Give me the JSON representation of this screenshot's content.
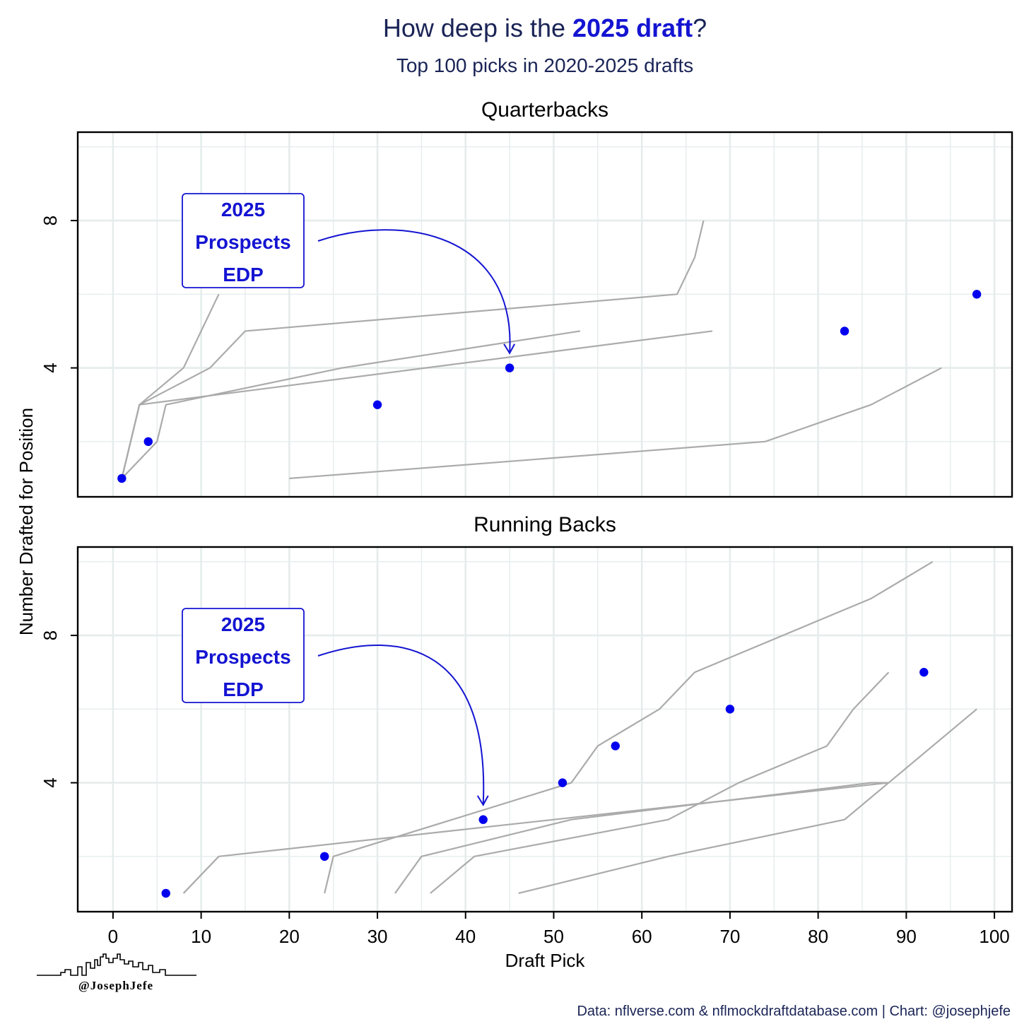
{
  "header": {
    "title_prefix": "How deep is the ",
    "title_highlight": "2025 draft",
    "title_suffix": "?",
    "subtitle": "Top 100 picks in 2020-2025 drafts"
  },
  "axes": {
    "xlabel": "Draft Pick",
    "ylabel": "Number Drafted for Position"
  },
  "annotation": {
    "lines": [
      "2025",
      "Prospects",
      "EDP"
    ]
  },
  "footer": {
    "caption": "Data: nflverse.com & nflmockdraftdatabase.com | Chart: @josephjefe",
    "logo_text": "@JosephJefe"
  },
  "colors": {
    "navy": "#1a2456",
    "highlight": "#1414d2",
    "point": "#0000ee",
    "history_line": "#ababab",
    "grid": "#e6ecec"
  },
  "chart_data": [
    {
      "type": "line",
      "panel_title": "Quarterbacks",
      "xlim": [
        -4,
        102
      ],
      "ylim": [
        0.5,
        10.4
      ],
      "x_ticks": [
        0,
        10,
        20,
        30,
        40,
        50,
        60,
        70,
        80,
        90,
        100
      ],
      "y_ticks": [
        4,
        8
      ],
      "grid": true,
      "history_series": [
        {
          "x": [
            1,
            3,
            8,
            12
          ],
          "y": [
            1,
            3,
            4,
            6
          ]
        },
        {
          "x": [
            1,
            3,
            11,
            15,
            64,
            66,
            67
          ],
          "y": [
            1,
            3,
            4,
            5,
            6,
            7,
            8
          ]
        },
        {
          "x": [
            1,
            5,
            6,
            26,
            53
          ],
          "y": [
            1,
            2,
            3,
            4,
            5
          ]
        },
        {
          "x": [
            1,
            2,
            3,
            68
          ],
          "y": [
            1,
            2,
            3,
            5
          ]
        },
        {
          "x": [
            20,
            74,
            86,
            94
          ],
          "y": [
            1,
            2,
            3,
            4
          ]
        }
      ],
      "edp_2025": {
        "x": [
          1,
          4,
          30,
          45,
          83,
          98
        ],
        "y": [
          1,
          2,
          3,
          4,
          5,
          6
        ]
      },
      "annotation_target": {
        "x": 45,
        "y": 4.4
      }
    },
    {
      "type": "line",
      "panel_title": "Running Backs",
      "xlim": [
        -4,
        102
      ],
      "ylim": [
        0.5,
        10.4
      ],
      "x_ticks": [
        0,
        10,
        20,
        30,
        40,
        50,
        60,
        70,
        80,
        90,
        100
      ],
      "y_ticks": [
        4,
        8
      ],
      "grid": true,
      "history_series": [
        {
          "x": [
            8,
            12,
            88
          ],
          "y": [
            1,
            2,
            4
          ]
        },
        {
          "x": [
            24,
            25,
            52,
            55,
            62,
            66,
            86,
            93
          ],
          "y": [
            1,
            2,
            4,
            5,
            6,
            7,
            9,
            10
          ]
        },
        {
          "x": [
            32,
            35,
            52,
            86,
            88
          ],
          "y": [
            1,
            2,
            3,
            4,
            4
          ]
        },
        {
          "x": [
            36,
            41,
            63,
            71,
            81,
            84,
            88
          ],
          "y": [
            1,
            2,
            3,
            4,
            5,
            6,
            7
          ]
        },
        {
          "x": [
            46,
            63,
            83,
            88,
            93,
            98
          ],
          "y": [
            1,
            2,
            3,
            4,
            5,
            6
          ]
        }
      ],
      "edp_2025": {
        "x": [
          6,
          24,
          42,
          51,
          57,
          70,
          92
        ],
        "y": [
          1,
          2,
          3,
          4,
          5,
          6,
          7
        ]
      },
      "annotation_target": {
        "x": 42,
        "y": 3.4
      }
    }
  ]
}
